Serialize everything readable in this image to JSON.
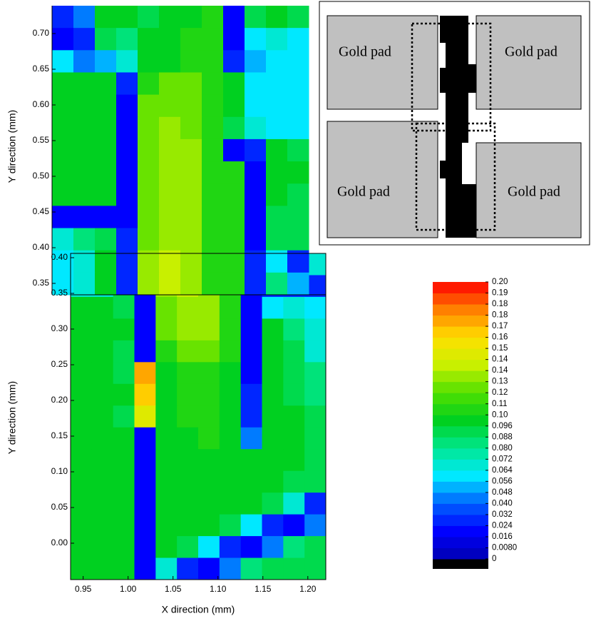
{
  "chart_data": [
    {
      "type": "heatmap",
      "y_label": "Y direction (mm)",
      "xlim": [
        0.915,
        1.2
      ],
      "ylim": [
        0.334,
        0.739
      ],
      "yticks": [
        0.35,
        {
          "value": 0.4,
          "label": "0.40"
        },
        0.45,
        {
          "value": 0.5,
          "label": "0.50"
        },
        0.55,
        {
          "value": 0.6,
          "label": "0.60"
        },
        0.65,
        {
          "value": 0.7,
          "label": "0.70"
        }
      ],
      "z": [
        [
          0.03,
          0.04,
          0.1,
          0.1,
          0.09,
          0.1,
          0.1,
          0.11,
          0.02,
          0.09,
          0.1,
          0.09
        ],
        [
          0.02,
          0.03,
          0.09,
          0.08,
          0.1,
          0.1,
          0.11,
          0.11,
          0.02,
          0.06,
          0.07,
          0.06
        ],
        [
          0.06,
          0.04,
          0.05,
          0.07,
          0.1,
          0.1,
          0.11,
          0.11,
          0.03,
          0.05,
          0.06,
          0.06
        ],
        [
          0.1,
          0.1,
          0.1,
          0.03,
          0.11,
          0.12,
          0.12,
          0.11,
          0.1,
          0.06,
          0.06,
          0.06
        ],
        [
          0.1,
          0.1,
          0.1,
          0.02,
          0.12,
          0.12,
          0.12,
          0.11,
          0.1,
          0.06,
          0.06,
          0.06
        ],
        [
          0.1,
          0.1,
          0.1,
          0.02,
          0.12,
          0.13,
          0.12,
          0.11,
          0.09,
          0.07,
          0.06,
          0.06
        ],
        [
          0.1,
          0.1,
          0.1,
          0.02,
          0.12,
          0.13,
          0.13,
          0.11,
          0.02,
          0.03,
          0.1,
          0.09
        ],
        [
          0.1,
          0.1,
          0.1,
          0.02,
          0.12,
          0.13,
          0.13,
          0.11,
          0.11,
          0.02,
          0.1,
          0.1
        ],
        [
          0.1,
          0.1,
          0.1,
          0.02,
          0.12,
          0.13,
          0.13,
          0.11,
          0.11,
          0.02,
          0.1,
          0.09
        ],
        [
          0.02,
          0.02,
          0.02,
          0.02,
          0.12,
          0.13,
          0.13,
          0.11,
          0.11,
          0.02,
          0.09,
          0.09
        ],
        [
          0.07,
          0.08,
          0.09,
          0.03,
          0.12,
          0.13,
          0.13,
          0.11,
          0.11,
          0.02,
          0.09,
          0.09
        ],
        [
          0.06,
          0.07,
          0.1,
          0.03,
          0.13,
          0.14,
          0.13,
          0.11,
          0.11,
          0.03,
          0.06,
          0.03
        ],
        [
          0.06,
          0.07,
          0.1,
          0.03,
          0.13,
          0.14,
          0.13,
          0.11,
          0.11,
          0.03,
          0.08,
          0.05
        ]
      ]
    },
    {
      "type": "heatmap",
      "y_label": "Y direction (mm)",
      "x_label": "X direction (mm)",
      "xlim": [
        0.936,
        1.22
      ],
      "ylim": [
        -0.051,
        0.406
      ],
      "xticks": [
        0.95,
        {
          "value": 1.0,
          "label": "1.00"
        },
        1.05,
        {
          "value": 1.1,
          "label": "1.10"
        },
        1.15,
        {
          "value": 1.2,
          "label": "1.20"
        }
      ],
      "yticks": [
        {
          "value": 0,
          "label": "0.00"
        },
        0.05,
        {
          "value": 0.1,
          "label": "0.10"
        },
        0.15,
        {
          "value": 0.2,
          "label": "0.20"
        },
        0.25,
        {
          "value": 0.3,
          "label": "0.30"
        },
        0.35,
        {
          "value": 0.4,
          "label": "0.40"
        }
      ],
      "z": [
        [
          0.06,
          0.06,
          0.08,
          0.02,
          0.13,
          0.14,
          0.13,
          0.11,
          0.02,
          0.06,
          0.07,
          0.07
        ],
        [
          0.07,
          0.07,
          0.09,
          0.02,
          0.13,
          0.14,
          0.13,
          0.11,
          0.02,
          0.03,
          0.03,
          0.03
        ],
        [
          0.1,
          0.1,
          0.09,
          0.02,
          0.12,
          0.13,
          0.13,
          0.11,
          0.02,
          0.06,
          0.07,
          0.06
        ],
        [
          0.1,
          0.1,
          0.1,
          0.02,
          0.12,
          0.13,
          0.13,
          0.11,
          0.02,
          0.1,
          0.08,
          0.07
        ],
        [
          0.1,
          0.1,
          0.09,
          0.02,
          0.11,
          0.12,
          0.12,
          0.11,
          0.02,
          0.1,
          0.09,
          0.07
        ],
        [
          0.1,
          0.1,
          0.09,
          0.17,
          0.1,
          0.11,
          0.11,
          0.1,
          0.02,
          0.1,
          0.09,
          0.08
        ],
        [
          0.1,
          0.1,
          0.1,
          0.16,
          0.1,
          0.11,
          0.11,
          0.1,
          0.03,
          0.1,
          0.09,
          0.08
        ],
        [
          0.1,
          0.1,
          0.09,
          0.15,
          0.1,
          0.11,
          0.11,
          0.1,
          0.03,
          0.1,
          0.1,
          0.09
        ],
        [
          0.1,
          0.1,
          0.1,
          0.02,
          0.1,
          0.1,
          0.11,
          0.1,
          0.04,
          0.1,
          0.1,
          0.09
        ],
        [
          0.1,
          0.1,
          0.1,
          0.02,
          0.1,
          0.1,
          0.1,
          0.1,
          0.1,
          0.1,
          0.1,
          0.09
        ],
        [
          0.1,
          0.1,
          0.1,
          0.02,
          0.1,
          0.1,
          0.1,
          0.1,
          0.1,
          0.1,
          0.09,
          0.09
        ],
        [
          0.1,
          0.1,
          0.1,
          0.02,
          0.1,
          0.1,
          0.1,
          0.1,
          0.1,
          0.09,
          0.07,
          0.03
        ],
        [
          0.1,
          0.1,
          0.1,
          0.02,
          0.1,
          0.1,
          0.1,
          0.09,
          0.06,
          0.03,
          0.02,
          0.04
        ],
        [
          0.1,
          0.1,
          0.1,
          0.02,
          0.1,
          0.09,
          0.06,
          0.03,
          0.02,
          0.04,
          0.08,
          0.09
        ],
        [
          0.1,
          0.1,
          0.1,
          0.02,
          0.07,
          0.03,
          0.02,
          0.04,
          0.08,
          0.09,
          0.09,
          0.09
        ]
      ]
    }
  ],
  "colorbar": {
    "ticks": [
      0,
      {
        "value": 0.008,
        "label": "0.0080"
      },
      0.016,
      0.024,
      0.032,
      {
        "value": 0.04,
        "label": "0.040"
      },
      0.048,
      0.056,
      0.064,
      0.072,
      {
        "value": 0.08,
        "label": "0.080"
      },
      0.088,
      0.096,
      {
        "value": 0.104,
        "label": "0.10"
      },
      {
        "value": 0.112,
        "label": "0.11"
      },
      0.12,
      {
        "value": 0.128,
        "label": "0.13"
      },
      {
        "value": 0.136,
        "label": "0.14"
      },
      {
        "value": 0.144,
        "label": "0.14"
      },
      {
        "value": 0.152,
        "label": "0.15"
      },
      0.16,
      {
        "value": 0.168,
        "label": "0.17"
      },
      {
        "value": 0.176,
        "label": "0.18"
      },
      {
        "value": 0.184,
        "label": "0.18"
      },
      {
        "value": 0.192,
        "label": "0.19"
      },
      {
        "value": 0.2,
        "label": "0.20"
      }
    ],
    "colormap": [
      "#0000b0",
      "#0000ff",
      "#0060ff",
      "#00e8ff",
      "#00e890",
      "#00d020",
      "#50e000",
      "#c8f000",
      "#ffe000",
      "#ff8000",
      "#ff0000"
    ],
    "underflow_color": "#000000"
  },
  "schematic": {
    "labels": [
      "Gold pad",
      "Gold pad",
      "Gold pad",
      "Gold pad"
    ]
  }
}
